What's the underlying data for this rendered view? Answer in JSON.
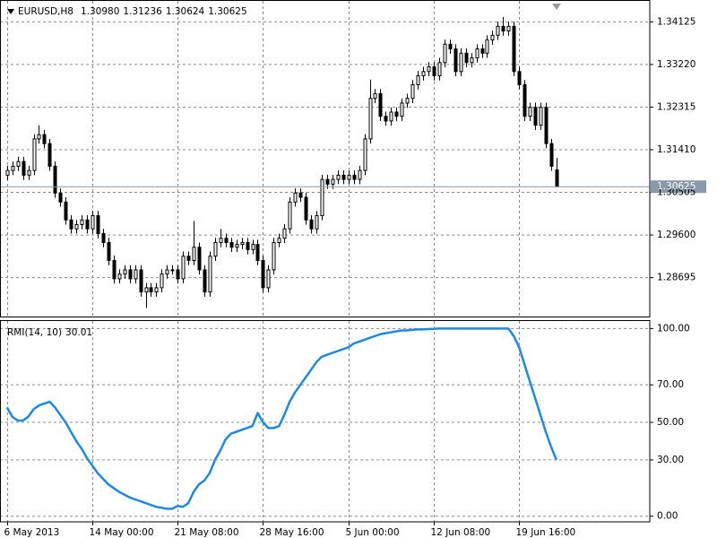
{
  "chart_data": [
    {
      "type": "candlestick",
      "title": "EURUSD,H8",
      "header_labels": [
        "1.30980",
        "1.31236",
        "1.30624",
        "1.30625"
      ],
      "open": [
        1.3087,
        1.3097,
        1.3106,
        1.3116,
        1.3087,
        1.3097,
        1.3164,
        1.3173,
        1.3154,
        1.3106,
        1.3049,
        1.303,
        1.2992,
        1.2973,
        1.2982,
        1.2992,
        1.2973,
        1.3001,
        1.2963,
        1.2944,
        1.2906,
        1.2867,
        1.2877,
        1.2886,
        1.2867,
        1.2886,
        1.2839,
        1.2848,
        1.2839,
        1.2848,
        1.2877,
        1.2886,
        1.2886,
        1.2867,
        1.2915,
        1.2906,
        1.2934,
        1.2886,
        1.2839,
        1.2915,
        1.2944,
        1.2953,
        1.2944,
        1.2934,
        1.294,
        1.2944,
        1.2929,
        1.294,
        1.2906,
        1.2848,
        1.2886,
        1.2944,
        1.2953,
        1.2973,
        1.303,
        1.3049,
        1.304,
        1.2992,
        1.2973,
        1.3001,
        1.3078,
        1.3068,
        1.3078,
        1.3087,
        1.3078,
        1.3087,
        1.3078,
        1.3097,
        1.3164,
        1.325,
        1.326,
        1.3212,
        1.3202,
        1.3221,
        1.3212,
        1.324,
        1.325,
        1.3279,
        1.3298,
        1.3307,
        1.3317,
        1.3298,
        1.3326,
        1.3365,
        1.3355,
        1.3307,
        1.3346,
        1.3326,
        1.3336,
        1.3355,
        1.3346,
        1.3374,
        1.3384,
        1.3403,
        1.3393,
        1.3403,
        1.3307,
        1.3279,
        1.3212,
        1.3231,
        1.3193,
        1.3231,
        1.3154,
        1.3098
      ],
      "high": [
        1.3107,
        1.3116,
        1.3126,
        1.3126,
        1.3107,
        1.3174,
        1.3193,
        1.3183,
        1.3164,
        1.3116,
        1.3059,
        1.304,
        1.3002,
        1.2992,
        1.3002,
        1.3002,
        1.3011,
        1.3011,
        1.2973,
        1.2954,
        1.2916,
        1.2887,
        1.2896,
        1.2896,
        1.2896,
        1.2896,
        1.2858,
        1.2858,
        1.2858,
        1.2887,
        1.2896,
        1.2896,
        1.2896,
        1.2925,
        1.2925,
        1.299,
        1.2944,
        1.2896,
        1.2925,
        1.2954,
        1.2973,
        1.2963,
        1.2954,
        1.295,
        1.2954,
        1.2954,
        1.295,
        1.295,
        1.2916,
        1.2896,
        1.2954,
        1.2963,
        1.2983,
        1.304,
        1.3059,
        1.3059,
        1.305,
        1.3002,
        1.3011,
        1.3088,
        1.3088,
        1.3088,
        1.3097,
        1.3097,
        1.3097,
        1.3097,
        1.3107,
        1.3174,
        1.329,
        1.327,
        1.327,
        1.3222,
        1.3231,
        1.3231,
        1.325,
        1.326,
        1.3289,
        1.3308,
        1.3317,
        1.3327,
        1.3327,
        1.3336,
        1.3375,
        1.3375,
        1.3365,
        1.3356,
        1.3356,
        1.3346,
        1.3365,
        1.3365,
        1.3384,
        1.3394,
        1.3413,
        1.3423,
        1.3413,
        1.3413,
        1.3317,
        1.3289,
        1.3241,
        1.3241,
        1.3241,
        1.3241,
        1.3164,
        1.31236
      ],
      "low": [
        1.3077,
        1.3087,
        1.3096,
        1.3077,
        1.3077,
        1.3087,
        1.3154,
        1.3144,
        1.3096,
        1.3039,
        1.302,
        1.2982,
        1.2963,
        1.2963,
        1.2972,
        1.2963,
        1.2963,
        1.2953,
        1.2934,
        1.2896,
        1.2857,
        1.2857,
        1.2867,
        1.2857,
        1.2857,
        1.2829,
        1.2805,
        1.2829,
        1.2829,
        1.2838,
        1.2867,
        1.2876,
        1.2857,
        1.2857,
        1.2896,
        1.2896,
        1.2876,
        1.2829,
        1.2829,
        1.2905,
        1.2934,
        1.2934,
        1.2924,
        1.2924,
        1.293,
        1.2919,
        1.2919,
        1.2896,
        1.2838,
        1.2838,
        1.2876,
        1.2934,
        1.2943,
        1.2963,
        1.302,
        1.303,
        1.2982,
        1.2963,
        1.2963,
        1.2991,
        1.3058,
        1.3058,
        1.3068,
        1.3068,
        1.3068,
        1.3068,
        1.3068,
        1.3087,
        1.3154,
        1.324,
        1.3202,
        1.3192,
        1.3192,
        1.3202,
        1.3202,
        1.323,
        1.324,
        1.3269,
        1.3288,
        1.3297,
        1.3288,
        1.3288,
        1.3316,
        1.3345,
        1.3297,
        1.3297,
        1.3316,
        1.3316,
        1.3326,
        1.3336,
        1.3336,
        1.3364,
        1.3374,
        1.3383,
        1.3383,
        1.3297,
        1.3269,
        1.3202,
        1.3202,
        1.3183,
        1.3183,
        1.3144,
        1.3096,
        1.30624
      ],
      "close": [
        1.3097,
        1.3106,
        1.3116,
        1.3087,
        1.3097,
        1.3164,
        1.3173,
        1.3154,
        1.3106,
        1.3049,
        1.303,
        1.2992,
        1.2973,
        1.2982,
        1.2992,
        1.2973,
        1.3001,
        1.2963,
        1.2944,
        1.2906,
        1.2867,
        1.2877,
        1.2886,
        1.2867,
        1.2886,
        1.2839,
        1.2848,
        1.2839,
        1.2848,
        1.2877,
        1.2886,
        1.2886,
        1.2867,
        1.2915,
        1.2906,
        1.2934,
        1.2886,
        1.2839,
        1.2915,
        1.2944,
        1.2953,
        1.2944,
        1.2934,
        1.294,
        1.2944,
        1.2929,
        1.294,
        1.2906,
        1.2848,
        1.2886,
        1.2944,
        1.2953,
        1.2973,
        1.303,
        1.3049,
        1.304,
        1.2992,
        1.2973,
        1.3001,
        1.3078,
        1.3068,
        1.3078,
        1.3087,
        1.3078,
        1.3087,
        1.3078,
        1.3097,
        1.3164,
        1.325,
        1.326,
        1.3212,
        1.3202,
        1.3221,
        1.3212,
        1.324,
        1.325,
        1.3279,
        1.3298,
        1.3307,
        1.3317,
        1.3298,
        1.3326,
        1.3365,
        1.3355,
        1.3307,
        1.3346,
        1.3326,
        1.3336,
        1.3355,
        1.3346,
        1.3374,
        1.3384,
        1.3403,
        1.3393,
        1.3403,
        1.3307,
        1.3279,
        1.3212,
        1.3231,
        1.3193,
        1.3231,
        1.3154,
        1.3106,
        1.30625
      ],
      "current_price": {
        "value": 1.30625,
        "label": "1.30625"
      },
      "xlim": [
        -1.3,
        120.5
      ],
      "ylim": [
        1.2785,
        1.3457
      ],
      "yticks": [
        {
          "value": 1.34125,
          "label": "1.34125"
        },
        {
          "value": 1.3322,
          "label": "1.33220"
        },
        {
          "value": 1.32315,
          "label": "1.32315"
        },
        {
          "value": 1.3141,
          "label": "1.31410"
        },
        {
          "value": 1.30505,
          "label": "1.30505"
        },
        {
          "value": 1.296,
          "label": "1.29600"
        },
        {
          "value": 1.28695,
          "label": "1.28695"
        }
      ],
      "grid": true
    },
    {
      "type": "line",
      "series": [
        {
          "name": "RMI(14, 10)",
          "color": "#1e88e5",
          "last_value_label": "30.01",
          "values": [
            58,
            53,
            51,
            51,
            53,
            57,
            59,
            60,
            61,
            58,
            54,
            50,
            45,
            40,
            36,
            31,
            27,
            23,
            20,
            17,
            15,
            13,
            11.5,
            10,
            9,
            8,
            7,
            6,
            5,
            4.5,
            4,
            4,
            5.5,
            5,
            7,
            13,
            17,
            19,
            23,
            30,
            35,
            41,
            44,
            45,
            46,
            47,
            48,
            55,
            50,
            47,
            47,
            48,
            54,
            61,
            66,
            70,
            74,
            78,
            82,
            85,
            86,
            87,
            88,
            89,
            90,
            92,
            93,
            94,
            95,
            96,
            97,
            97.5,
            98,
            98.5,
            99,
            99,
            99.3,
            99.5,
            99.5,
            99.7,
            99.8,
            100,
            100,
            100,
            100,
            100,
            100,
            100,
            100,
            100,
            100,
            100,
            100,
            100,
            100,
            96,
            90,
            81,
            72,
            63,
            54,
            45,
            37,
            30.01
          ]
        }
      ],
      "xlim": [
        -1.3,
        120.5
      ],
      "xticks": [
        {
          "value": 0,
          "label": "6 May 2013"
        },
        {
          "value": 16,
          "label": "14 May 00:00"
        },
        {
          "value": 32,
          "label": "21 May 08:00"
        },
        {
          "value": 48,
          "label": "28 May 16:00"
        },
        {
          "value": 64,
          "label": "5 Jun 00:00"
        },
        {
          "value": 80,
          "label": "12 Jun 08:00"
        },
        {
          "value": 96,
          "label": "19 Jun 16:00"
        }
      ],
      "ylim": [
        -3,
        104
      ],
      "yticks": [
        {
          "value": 100,
          "label": "100.00"
        },
        {
          "value": 70,
          "label": "70.00"
        },
        {
          "value": 50,
          "label": "50.00"
        },
        {
          "value": 30,
          "label": "30.00"
        },
        {
          "value": 0,
          "label": "0.00"
        }
      ],
      "grid": true
    }
  ]
}
